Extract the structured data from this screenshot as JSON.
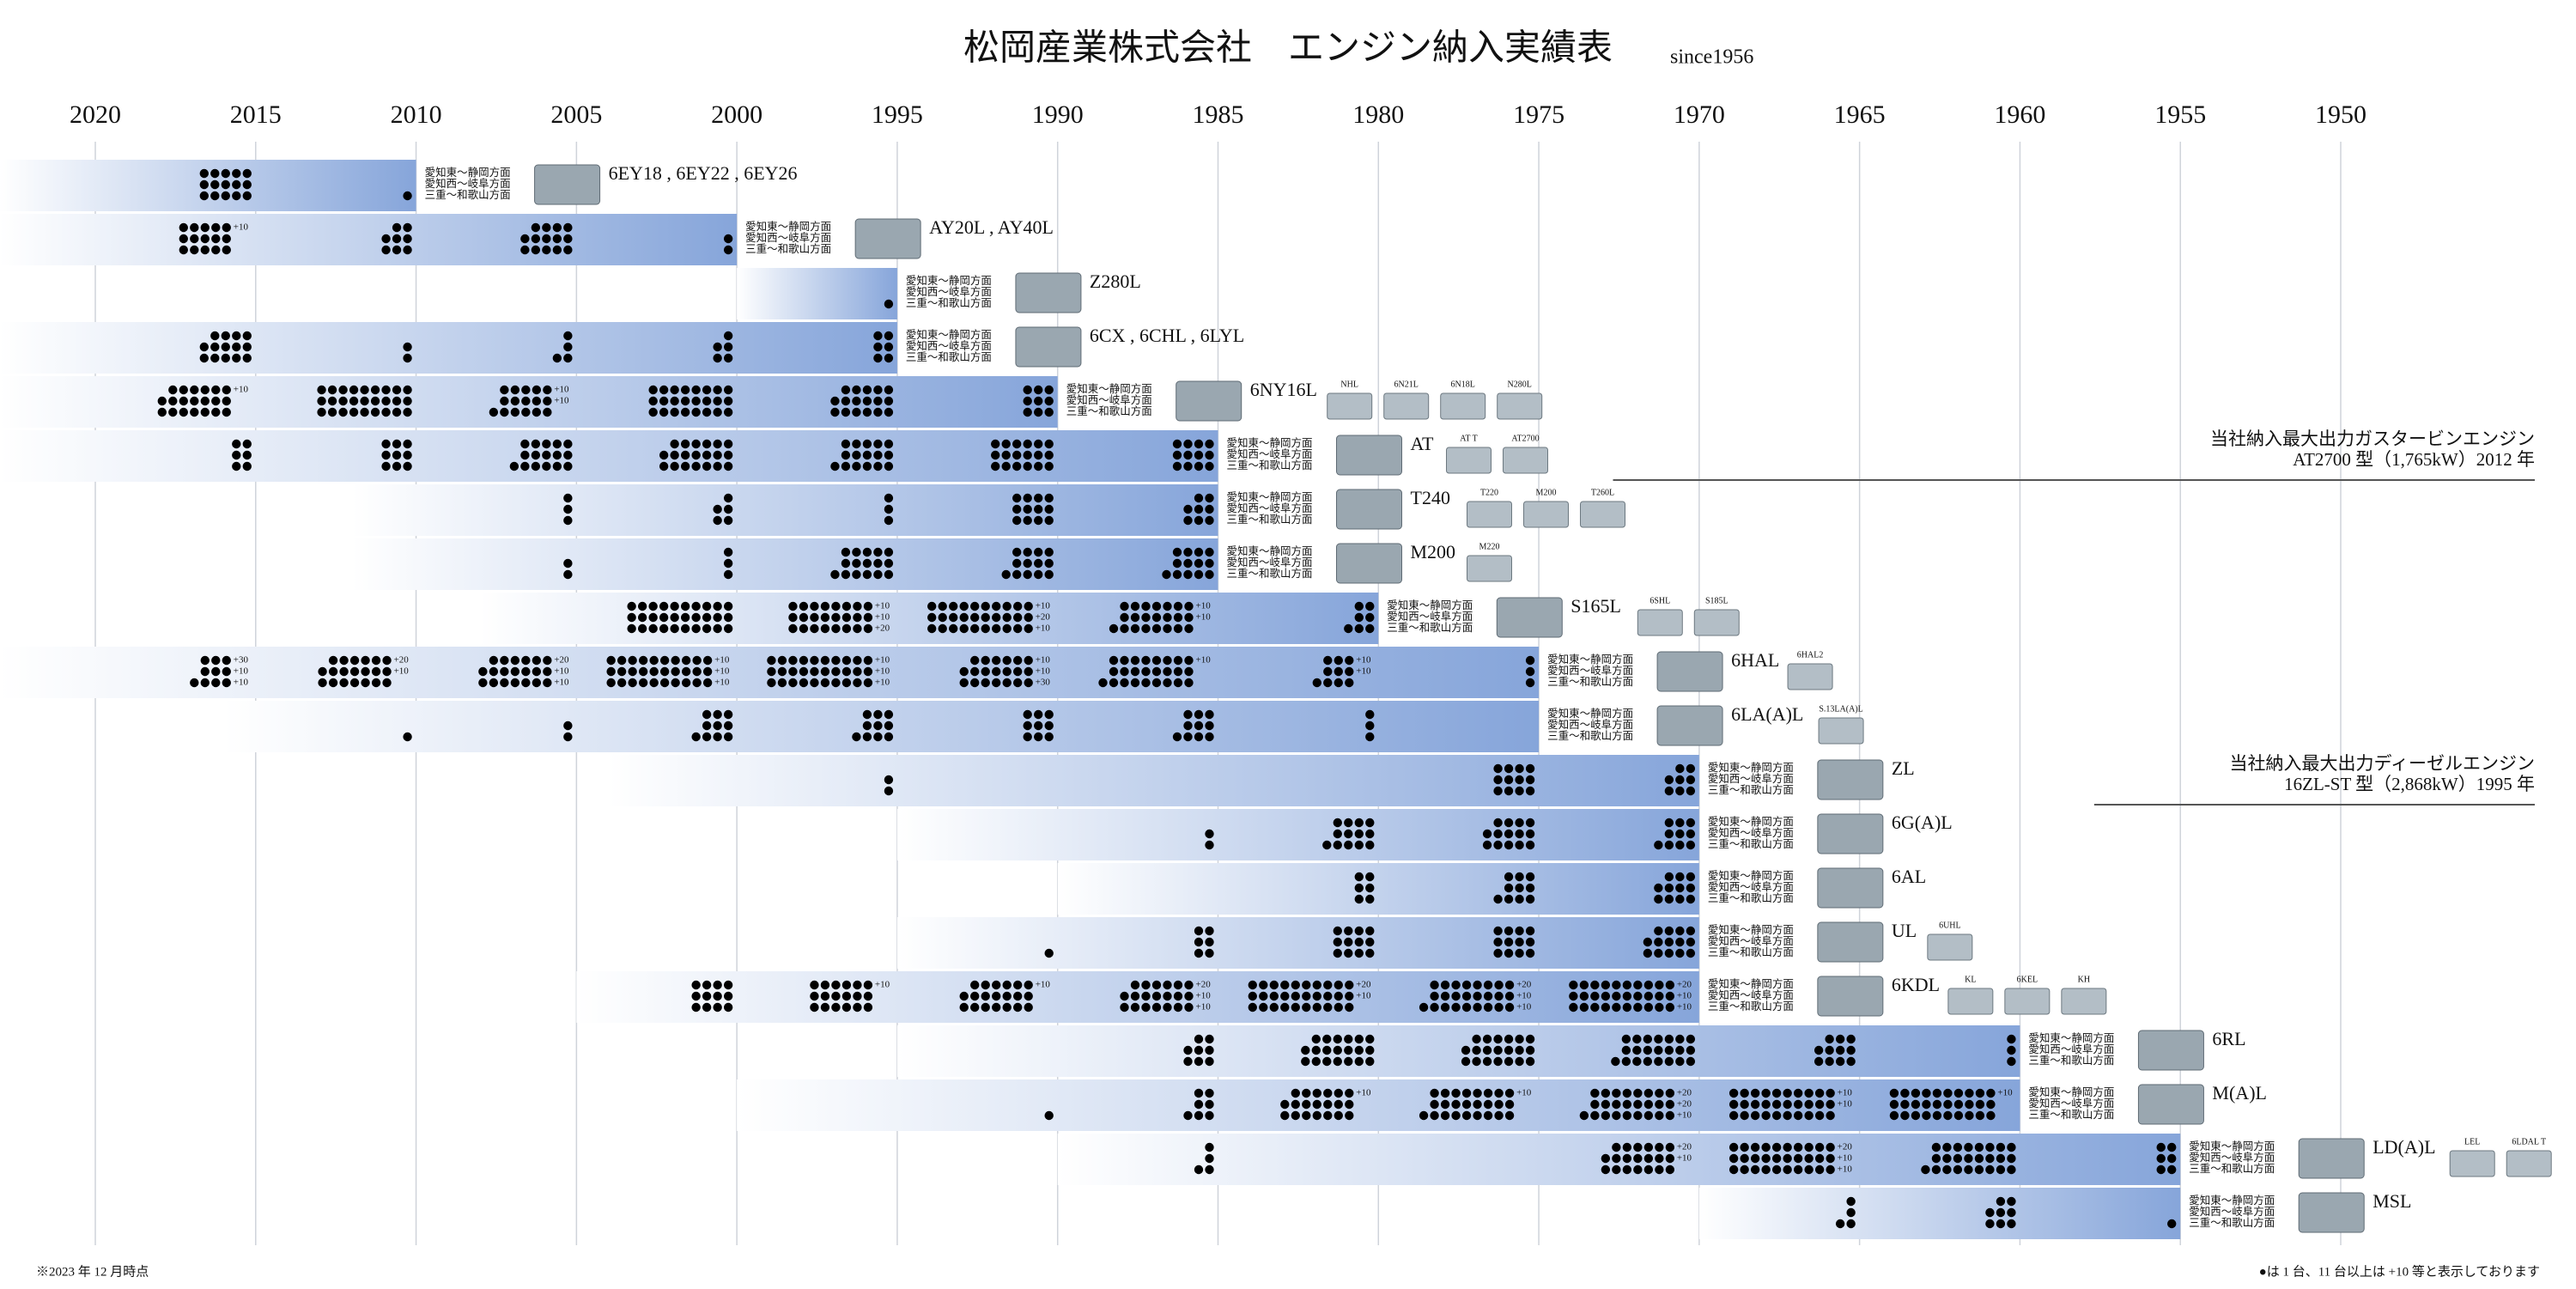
{
  "title": "松岡産業株式会社　エンジン納入実績表",
  "subtitle": "since1956",
  "years": [
    2020,
    2015,
    2010,
    2005,
    2000,
    1995,
    1990,
    1985,
    1980,
    1975,
    1970,
    1965,
    1960,
    1955,
    1950
  ],
  "regions": [
    "愛知東～静岡方面",
    "愛知西～岐阜方面",
    "三重～和歌山方面"
  ],
  "rows": [
    {
      "name": "6EY18 , 6EY22 , 6EY26",
      "from": 2023,
      "start": 2010,
      "models": [],
      "cells": [
        {
          "period": 2015,
          "count": 15,
          "extra": []
        },
        {
          "period": 2010,
          "count": 1,
          "extra": []
        }
      ]
    },
    {
      "name": "AY20L , AY40L",
      "from": 2023,
      "start": 2000,
      "models": [],
      "cells": [
        {
          "period": 2015,
          "count": 15,
          "extra": [
            "+10"
          ]
        },
        {
          "period": 2010,
          "count": 8,
          "extra": []
        },
        {
          "period": 2005,
          "count": 14,
          "extra": []
        },
        {
          "period": 2000,
          "count": 2,
          "extra": []
        }
      ]
    },
    {
      "name": "Z280L",
      "from": 2000,
      "start": 1995,
      "models": [],
      "cells": [
        {
          "period": 1995,
          "count": 1,
          "extra": []
        }
      ]
    },
    {
      "name": "6CX , 6CHL , 6LYL",
      "from": 2023,
      "start": 1995,
      "models": [],
      "cells": [
        {
          "period": 2015,
          "count": 14,
          "extra": []
        },
        {
          "period": 2010,
          "count": 2,
          "extra": []
        },
        {
          "period": 2005,
          "count": 4,
          "extra": []
        },
        {
          "period": 2000,
          "count": 5,
          "extra": []
        },
        {
          "period": 1995,
          "count": 6,
          "extra": []
        }
      ]
    },
    {
      "name": "6NY16L",
      "from": 2023,
      "start": 1990,
      "models": [
        "NHL",
        "6N21L",
        "6N18L",
        "N280L"
      ],
      "cells": [
        {
          "period": 2015,
          "count": 20,
          "extra": [
            "+10"
          ]
        },
        {
          "period": 2010,
          "count": 27,
          "extra": []
        },
        {
          "period": 2005,
          "count": 16,
          "extra": [
            "+10",
            "+10"
          ]
        },
        {
          "period": 2000,
          "count": 24,
          "extra": []
        },
        {
          "period": 1995,
          "count": 17,
          "extra": []
        },
        {
          "period": 1990,
          "count": 9,
          "extra": []
        }
      ]
    },
    {
      "name": "AT",
      "from": 2023,
      "start": 1985,
      "models": [
        "AT T",
        "AT2700"
      ],
      "cells": [
        {
          "period": 2015,
          "count": 6,
          "extra": []
        },
        {
          "period": 2010,
          "count": 9,
          "extra": []
        },
        {
          "period": 2005,
          "count": 16,
          "extra": []
        },
        {
          "period": 2000,
          "count": 20,
          "extra": []
        },
        {
          "period": 1995,
          "count": 16,
          "extra": []
        },
        {
          "period": 1990,
          "count": 18,
          "extra": []
        },
        {
          "period": 1985,
          "count": 12,
          "extra": []
        }
      ]
    },
    {
      "name": "T240",
      "from": 2012,
      "start": 1985,
      "models": [
        "T220",
        "M200",
        "T260L"
      ],
      "cells": [
        {
          "period": 2005,
          "count": 3,
          "extra": []
        },
        {
          "period": 2000,
          "count": 5,
          "extra": []
        },
        {
          "period": 1995,
          "count": 3,
          "extra": []
        },
        {
          "period": 1990,
          "count": 12,
          "extra": []
        },
        {
          "period": 1985,
          "count": 8,
          "extra": []
        }
      ]
    },
    {
      "name": "M200",
      "from": 2012,
      "start": 1985,
      "models": [
        "M220"
      ],
      "cells": [
        {
          "period": 2005,
          "count": 2,
          "extra": []
        },
        {
          "period": 2000,
          "count": 3,
          "extra": []
        },
        {
          "period": 1995,
          "count": 16,
          "extra": []
        },
        {
          "period": 1990,
          "count": 13,
          "extra": []
        },
        {
          "period": 1985,
          "count": 13,
          "extra": []
        }
      ]
    },
    {
      "name": "S165L",
      "from": 2008,
      "start": 1980,
      "models": [
        "6SHL",
        "S185L"
      ],
      "cells": [
        {
          "period": 2000,
          "count": 30,
          "extra": []
        },
        {
          "period": 1995,
          "count": 24,
          "extra": [
            "+10",
            "+10",
            "+20"
          ]
        },
        {
          "period": 1990,
          "count": 30,
          "extra": [
            "+10",
            "+20",
            "+10"
          ]
        },
        {
          "period": 1985,
          "count": 22,
          "extra": [
            "+10",
            "+10"
          ]
        },
        {
          "period": 1980,
          "count": 7,
          "extra": []
        }
      ]
    },
    {
      "name": "6HAL",
      "from": 2023,
      "start": 1975,
      "models": [
        "6HAL2"
      ],
      "cells": [
        {
          "period": 2015,
          "count": 10,
          "extra": [
            "+30",
            "+10",
            "+10"
          ]
        },
        {
          "period": 2010,
          "count": 20,
          "extra": [
            "+20",
            "+10"
          ]
        },
        {
          "period": 2005,
          "count": 20,
          "extra": [
            "+20",
            "+10",
            "+10"
          ]
        },
        {
          "period": 2000,
          "count": 30,
          "extra": [
            "+10",
            "+10",
            "+10"
          ]
        },
        {
          "period": 1995,
          "count": 30,
          "extra": [
            "+10",
            "+10",
            "+10"
          ]
        },
        {
          "period": 1990,
          "count": 20,
          "extra": [
            "+10",
            "+10",
            "+30"
          ]
        },
        {
          "period": 1985,
          "count": 25,
          "extra": [
            "+10"
          ]
        },
        {
          "period": 1980,
          "count": 10,
          "extra": [
            "+10",
            "+10"
          ]
        },
        {
          "period": 1975,
          "count": 3,
          "extra": []
        }
      ]
    },
    {
      "name": "6LA(A)L",
      "from": 2016,
      "start": 1975,
      "models": [
        "S.13LA(A)L"
      ],
      "cells": [
        {
          "period": 2010,
          "count": 1,
          "extra": []
        },
        {
          "period": 2005,
          "count": 2,
          "extra": []
        },
        {
          "period": 2000,
          "count": 10,
          "extra": []
        },
        {
          "period": 1995,
          "count": 10,
          "extra": []
        },
        {
          "period": 1990,
          "count": 9,
          "extra": []
        },
        {
          "period": 1985,
          "count": 10,
          "extra": []
        },
        {
          "period": 1980,
          "count": 3,
          "extra": []
        }
      ]
    },
    {
      "name": "ZL",
      "from": 2004,
      "start": 1970,
      "models": [],
      "cells": [
        {
          "period": 1995,
          "count": 2,
          "extra": []
        },
        {
          "period": 1975,
          "count": 12,
          "extra": []
        },
        {
          "period": 1970,
          "count": 8,
          "extra": []
        }
      ]
    },
    {
      "name": "6G(A)L",
      "from": 1995,
      "start": 1970,
      "models": [],
      "cells": [
        {
          "period": 1985,
          "count": 2,
          "extra": []
        },
        {
          "period": 1980,
          "count": 13,
          "extra": []
        },
        {
          "period": 1975,
          "count": 14,
          "extra": []
        },
        {
          "period": 1970,
          "count": 10,
          "extra": []
        }
      ]
    },
    {
      "name": "6AL",
      "from": 1990,
      "start": 1970,
      "models": [],
      "cells": [
        {
          "period": 1980,
          "count": 6,
          "extra": []
        },
        {
          "period": 1975,
          "count": 10,
          "extra": []
        },
        {
          "period": 1970,
          "count": 11,
          "extra": []
        }
      ]
    },
    {
      "name": "UL",
      "from": 1995,
      "start": 1970,
      "models": [
        "6UHL"
      ],
      "cells": [
        {
          "period": 1990,
          "count": 1,
          "extra": []
        },
        {
          "period": 1985,
          "count": 6,
          "extra": []
        },
        {
          "period": 1980,
          "count": 12,
          "extra": []
        },
        {
          "period": 1975,
          "count": 12,
          "extra": []
        },
        {
          "period": 1970,
          "count": 14,
          "extra": []
        }
      ]
    },
    {
      "name": "6KDL",
      "from": 2005,
      "start": 1970,
      "models": [
        "KL",
        "6KEL",
        "KH"
      ],
      "cells": [
        {
          "period": 2000,
          "count": 12,
          "extra": []
        },
        {
          "period": 1995,
          "count": 18,
          "extra": [
            "+10"
          ]
        },
        {
          "period": 1990,
          "count": 20,
          "extra": [
            "+10"
          ]
        },
        {
          "period": 1985,
          "count": 20,
          "extra": [
            "+20",
            "+10",
            "+10"
          ]
        },
        {
          "period": 1980,
          "count": 30,
          "extra": [
            "+20",
            "+10"
          ]
        },
        {
          "period": 1975,
          "count": 25,
          "extra": [
            "+20",
            "+10",
            "+10"
          ]
        },
        {
          "period": 1970,
          "count": 30,
          "extra": [
            "+20",
            "+10",
            "+10"
          ]
        }
      ]
    },
    {
      "name": "6RL",
      "from": 1995,
      "start": 1960,
      "models": [],
      "cells": [
        {
          "period": 1985,
          "count": 8,
          "extra": []
        },
        {
          "period": 1980,
          "count": 20,
          "extra": []
        },
        {
          "period": 1975,
          "count": 20,
          "extra": []
        },
        {
          "period": 1970,
          "count": 22,
          "extra": []
        },
        {
          "period": 1965,
          "count": 11,
          "extra": []
        },
        {
          "period": 1960,
          "count": 3,
          "extra": []
        }
      ]
    },
    {
      "name": "M(A)L",
      "from": 2000,
      "start": 1960,
      "models": [],
      "cells": [
        {
          "period": 1990,
          "count": 1,
          "extra": []
        },
        {
          "period": 1985,
          "count": 7,
          "extra": []
        },
        {
          "period": 1980,
          "count": 20,
          "extra": [
            "+10"
          ]
        },
        {
          "period": 1975,
          "count": 25,
          "extra": [
            "+10"
          ]
        },
        {
          "period": 1970,
          "count": 25,
          "extra": [
            "+20",
            "+20",
            "+10"
          ]
        },
        {
          "period": 1965,
          "count": 30,
          "extra": [
            "+10",
            "+10"
          ]
        },
        {
          "period": 1960,
          "count": 30,
          "extra": [
            "+10"
          ]
        }
      ]
    },
    {
      "name": "LD(A)L",
      "from": 1990,
      "start": 1955,
      "models": [
        "LEL",
        "6LDAL T"
      ],
      "cells": [
        {
          "period": 1985,
          "count": 4,
          "extra": []
        },
        {
          "period": 1970,
          "count": 20,
          "extra": [
            "+20",
            "+10"
          ]
        },
        {
          "period": 1965,
          "count": 30,
          "extra": [
            "+20",
            "+10",
            "+10"
          ]
        },
        {
          "period": 1960,
          "count": 25,
          "extra": []
        },
        {
          "period": 1955,
          "count": 6,
          "extra": []
        }
      ]
    },
    {
      "name": "MSL",
      "from": 1970,
      "start": 1955,
      "models": [],
      "cells": [
        {
          "period": 1965,
          "count": 4,
          "extra": []
        },
        {
          "period": 1960,
          "count": 8,
          "extra": []
        },
        {
          "period": 1955,
          "count": 1,
          "extra": []
        }
      ]
    }
  ],
  "notes": [
    {
      "row": 5,
      "lines": [
        "当社納入最大出力ガスタービンエンジン",
        "AT2700 型（1,765kW）2012 年"
      ]
    },
    {
      "row": 11,
      "lines": [
        "当社納入最大出力ディーゼルエンジン",
        "16ZL-ST 型（2,868kW）1995 年"
      ]
    }
  ],
  "footnote_left": "※2023 年 12 月時点",
  "footnote_right": "●は 1 台、11 台以上は +10 等と表示しております"
}
